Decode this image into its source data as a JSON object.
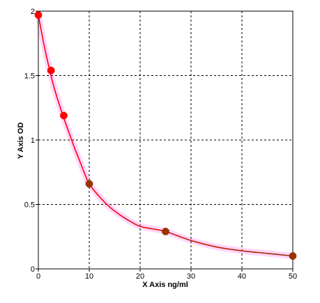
{
  "chart_data": {
    "type": "scatter",
    "xlabel": "X Axis ng/ml",
    "ylabel": "Y Axis OD",
    "xlim": [
      0,
      50
    ],
    "ylim": [
      0,
      2
    ],
    "x_ticks": [
      0,
      10,
      20,
      30,
      40,
      50
    ],
    "y_ticks": [
      0,
      0.5,
      1,
      1.5,
      2
    ],
    "x_tick_labels": [
      "0",
      "10",
      "20",
      "30",
      "40",
      "50"
    ],
    "y_tick_labels": [
      "0",
      "0.5",
      "1",
      "1.5",
      "2"
    ],
    "grid": true,
    "series": [
      {
        "x": [
          0,
          2.5,
          5,
          10,
          25,
          50
        ],
        "y": [
          1.97,
          1.54,
          1.19,
          0.66,
          0.29,
          0.1
        ],
        "point_colors": [
          "#ff0000",
          "#ff0000",
          "#ff0000",
          "#993300",
          "#993300",
          "#993300"
        ]
      }
    ],
    "fit_curve": {
      "x": [
        0,
        1,
        2,
        3,
        4,
        5,
        6,
        7,
        8,
        9,
        10,
        12,
        14,
        16,
        18,
        20,
        22.5,
        25,
        30,
        35,
        40,
        45,
        50
      ],
      "y": [
        1.97,
        1.76,
        1.58,
        1.42,
        1.29,
        1.17,
        1.06,
        0.95,
        0.85,
        0.75,
        0.66,
        0.56,
        0.48,
        0.42,
        0.37,
        0.33,
        0.31,
        0.29,
        0.22,
        0.17,
        0.14,
        0.12,
        0.1
      ],
      "color_start": "#ff0000",
      "color_end": "#993300"
    },
    "colors": {
      "grid": "#000000",
      "axis": "#000000",
      "highlight": "#ffccff"
    }
  }
}
